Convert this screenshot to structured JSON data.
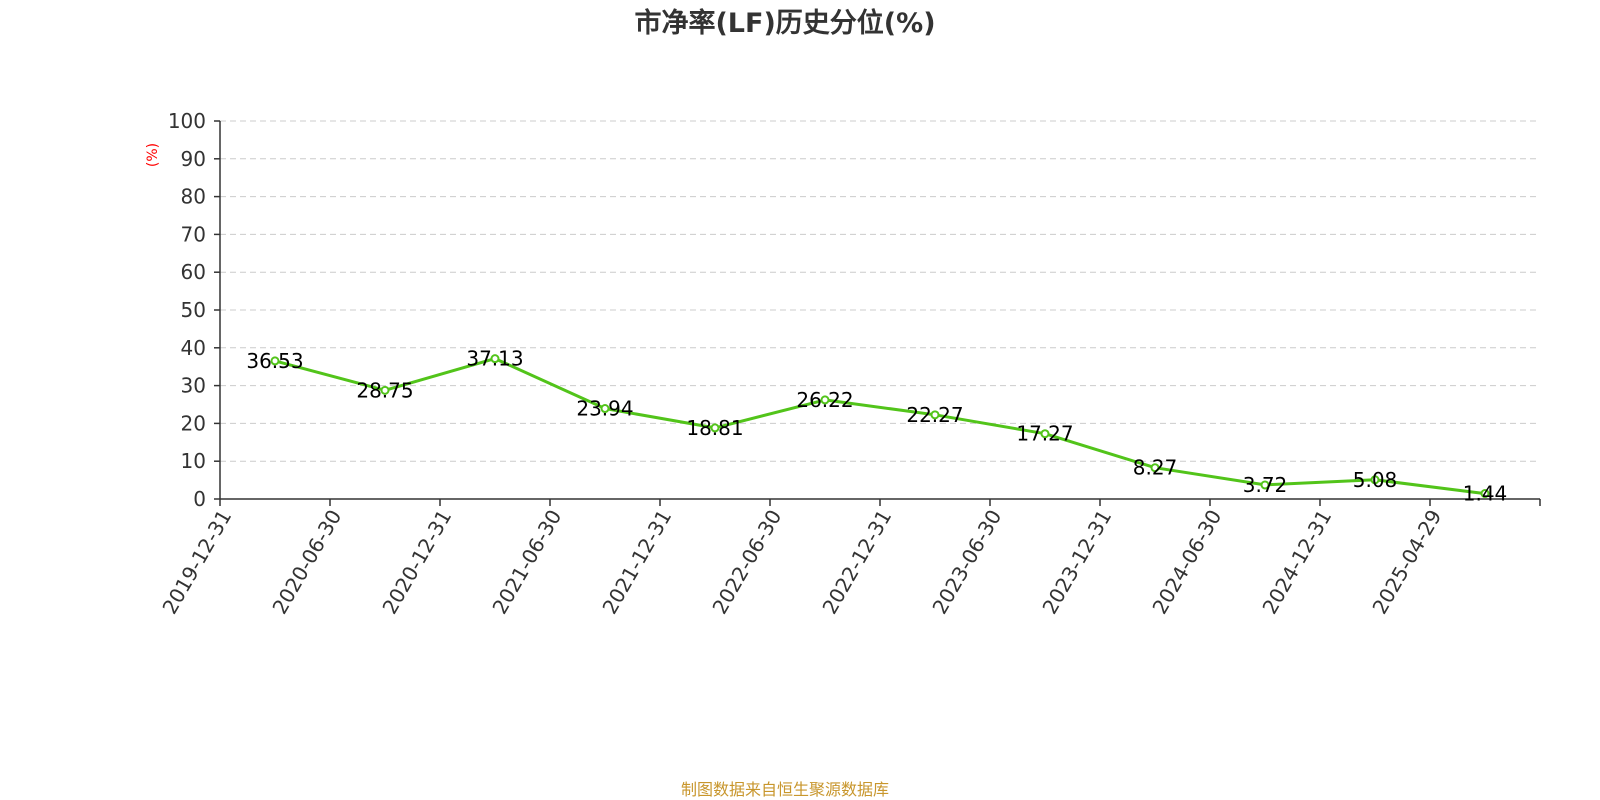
{
  "chart_data": {
    "type": "line",
    "title": "市净率(LF)历史分位(%)",
    "ylabel": "(%)",
    "xlabel": "",
    "ylim": [
      0,
      100
    ],
    "yticks": [
      0,
      10,
      20,
      30,
      40,
      50,
      60,
      70,
      80,
      90,
      100
    ],
    "grid": true,
    "categories": [
      "2019-12-31",
      "2020-06-30",
      "2020-12-31",
      "2021-06-30",
      "2021-12-31",
      "2022-06-30",
      "2022-12-31",
      "2023-06-30",
      "2023-12-31",
      "2024-06-30",
      "2024-12-31",
      "2025-04-29"
    ],
    "series": [
      {
        "values": [
          36.53,
          28.75,
          37.13,
          23.94,
          18.81,
          26.22,
          22.27,
          17.27,
          8.27,
          3.72,
          5.08,
          1.44
        ],
        "labels": [
          "36.53",
          "28.75",
          "37.13",
          "23.94",
          "18.81",
          "26.22",
          "22.27",
          "17.27",
          "8.27",
          "3.72",
          "5.08",
          "1.44"
        ]
      }
    ]
  },
  "colors": {
    "line": "#52c41a",
    "ylabel": "#ff0000",
    "footer": "#c8962c",
    "grid": "#cccccc",
    "axis": "#333333"
  },
  "footer": "制图数据来自恒生聚源数据库"
}
